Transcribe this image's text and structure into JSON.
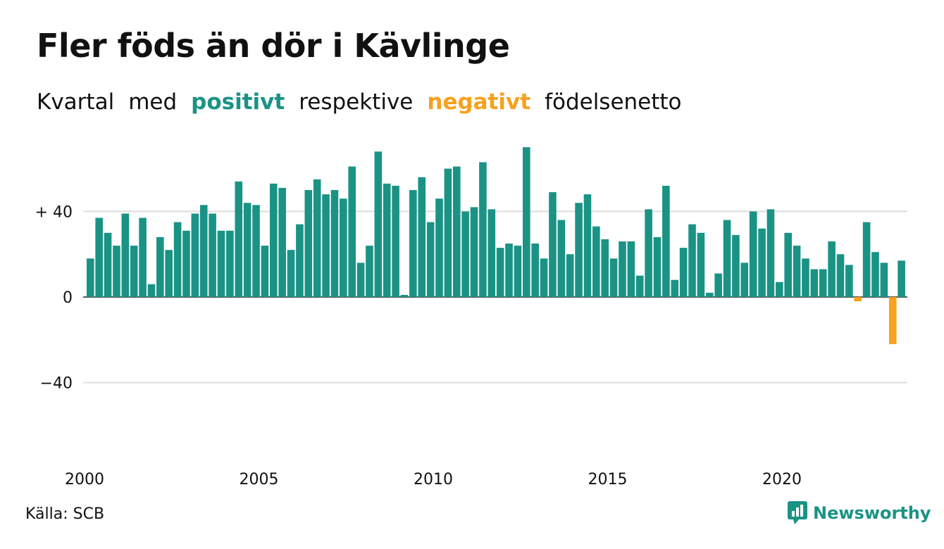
{
  "title": "Fler föds än dör i Kävlinge",
  "subtitle": {
    "part1": "Kvartal",
    "part2": "med",
    "positive": "positivt",
    "part3": "respektive",
    "negative": "negativt",
    "part4": "födelsenetto"
  },
  "source": "Källa: SCB",
  "brand": "Newsworthy",
  "colors": {
    "positive": "#1a9385",
    "negative": "#f7a11d",
    "grid": "#dddddd",
    "text": "#111111"
  },
  "chart_data": {
    "type": "bar",
    "title": "Fler föds än dör i Kävlinge",
    "subtitle": "Kvartal med positivt respektive negativt födelsenetto",
    "xlabel": "",
    "ylabel": "",
    "ylim": [
      -60,
      72
    ],
    "yticks": [
      {
        "value": 40,
        "label": "+ 40"
      },
      {
        "value": 0,
        "label": "0"
      },
      {
        "value": -40,
        "label": "−40"
      }
    ],
    "xticks": [
      {
        "value": 2000,
        "label": "2000"
      },
      {
        "value": 2005,
        "label": "2005"
      },
      {
        "value": 2010,
        "label": "2010"
      },
      {
        "value": 2015,
        "label": "2015"
      },
      {
        "value": 2020,
        "label": "2020"
      }
    ],
    "x_start": "2000 Q1",
    "x_end": "2023 Q2",
    "grid": true,
    "values": [
      18,
      37,
      30,
      24,
      39,
      24,
      37,
      6,
      28,
      22,
      35,
      31,
      39,
      43,
      39,
      31,
      31,
      54,
      44,
      43,
      24,
      53,
      51,
      22,
      34,
      50,
      55,
      48,
      50,
      46,
      61,
      16,
      24,
      68,
      53,
      52,
      1,
      50,
      56,
      35,
      46,
      60,
      61,
      40,
      42,
      63,
      41,
      23,
      25,
      24,
      70,
      25,
      18,
      49,
      36,
      20,
      44,
      48,
      33,
      27,
      18,
      26,
      26,
      10,
      41,
      28,
      52,
      8,
      23,
      34,
      30,
      2,
      11,
      36,
      29,
      16,
      40,
      32,
      41,
      7,
      30,
      24,
      18,
      13,
      13,
      26,
      20,
      15,
      -2,
      35,
      21,
      16,
      -22,
      17
    ]
  }
}
